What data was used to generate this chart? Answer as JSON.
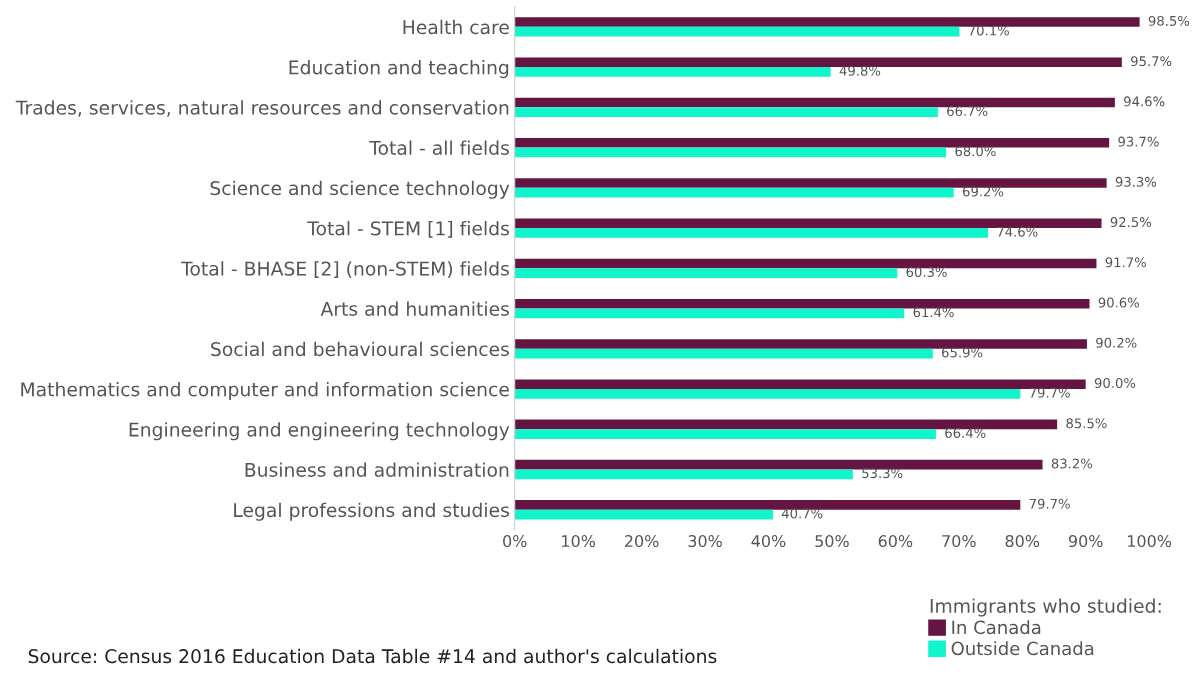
{
  "chart_data": {
    "type": "bar",
    "orientation": "horizontal",
    "categories": [
      "Health care",
      "Education and teaching",
      "Trades, services, natural resources and conservation",
      "Total - all fields",
      "Science and science technology",
      "Total - STEM [1] fields",
      "Total - BHASE [2] (non-STEM) fields",
      "Arts and humanities",
      "Social and behavioural sciences",
      "Mathematics and computer and information science",
      "Engineering and engineering technology",
      "Business and administration",
      "Legal professions and studies"
    ],
    "series": [
      {
        "name": "In Canada",
        "color": "#651541",
        "values": [
          98.5,
          95.7,
          94.6,
          93.7,
          93.3,
          92.5,
          91.7,
          90.6,
          90.2,
          90.0,
          85.5,
          83.2,
          79.7
        ],
        "value_labels": [
          "98.5%",
          "95.7%",
          "94.6%",
          "93.7%",
          "93.3%",
          "92.5%",
          "91.7%",
          "90.6%",
          "90.2%",
          "90.0%",
          "85.5%",
          "83.2%",
          "79.7%"
        ]
      },
      {
        "name": "Outside Canada",
        "color": "#12f5cc",
        "values": [
          70.1,
          49.8,
          66.7,
          68.0,
          69.2,
          74.6,
          60.3,
          61.4,
          65.9,
          79.7,
          66.4,
          53.3,
          40.7
        ],
        "value_labels": [
          "70.1%",
          "49.8%",
          "66.7%",
          "68.0%",
          "69.2%",
          "74.6%",
          "60.3%",
          "61.4%",
          "65.9%",
          "79.7%",
          "66.4%",
          "53.3%",
          "40.7%"
        ]
      }
    ],
    "xlim": [
      0,
      100
    ],
    "xticks": [
      {
        "value": 0,
        "label": "0%"
      },
      {
        "value": 10,
        "label": "10%"
      },
      {
        "value": 20,
        "label": "20%"
      },
      {
        "value": 30,
        "label": "30%"
      },
      {
        "value": 40,
        "label": "40%"
      },
      {
        "value": 50,
        "label": "50%"
      },
      {
        "value": 60,
        "label": "60%"
      },
      {
        "value": 70,
        "label": "70%"
      },
      {
        "value": 80,
        "label": "80%"
      },
      {
        "value": 90,
        "label": "90%"
      },
      {
        "value": 100,
        "label": "100%"
      }
    ],
    "legend": "bottom right",
    "legend_title": "Immigrants who studied:",
    "grid": false,
    "annotations": [
      "Source: Census 2016 Education Data Table #14 and author's calculations"
    ]
  }
}
